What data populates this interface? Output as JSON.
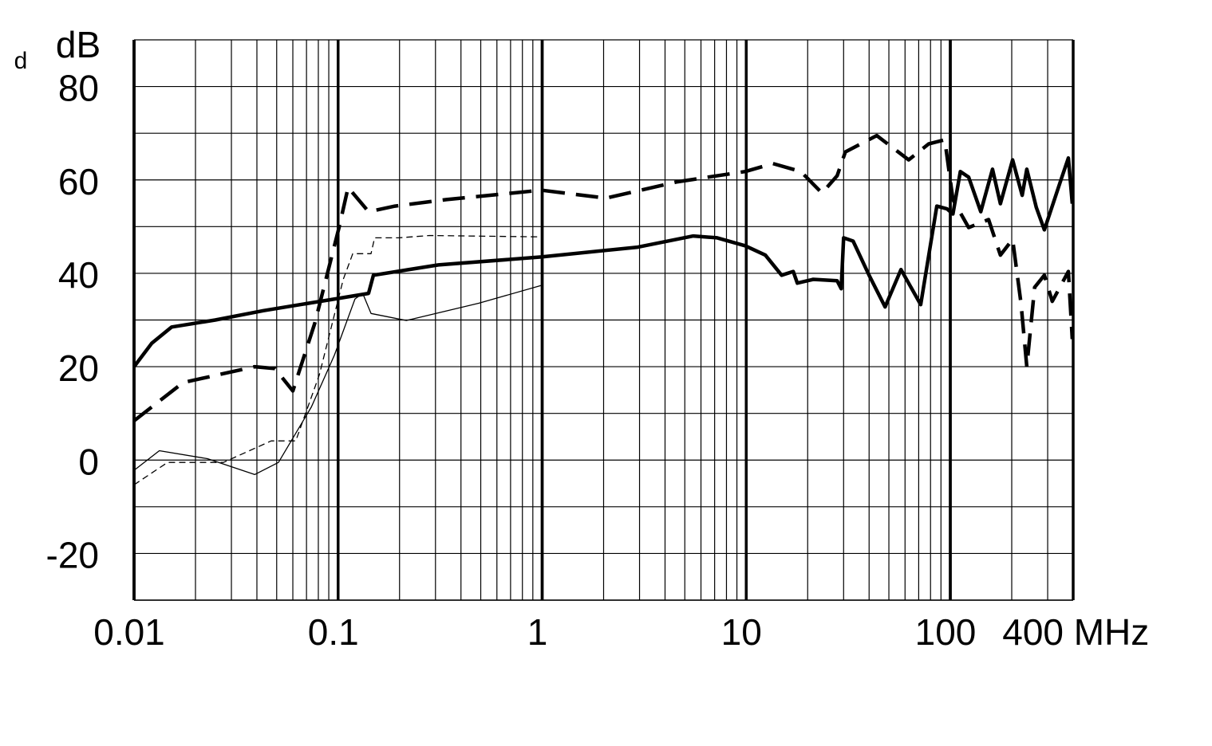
{
  "chart_data": {
    "type": "line",
    "corner_text": "d",
    "ylabel": "dB",
    "xlabel": "MHz",
    "xscale": "log",
    "xlim": [
      0.01,
      400
    ],
    "xticks": [
      0.01,
      0.1,
      1,
      10,
      100,
      400
    ],
    "ylim": [
      -30,
      90
    ],
    "yticks": [
      -20,
      0,
      20,
      40,
      60,
      80
    ],
    "y_minor_grid": [
      -30,
      -10,
      10,
      30,
      50,
      70,
      90
    ],
    "grid": true,
    "series": [
      {
        "color": "#000000",
        "style": "solid",
        "width": 4.5,
        "x": [
          0.01,
          0.0122,
          0.0153,
          0.025,
          0.043,
          0.0964,
          0.141,
          0.149,
          0.31,
          0.99,
          2.94,
          5.5,
          7.2,
          9.9,
          12.4,
          14.9,
          17,
          17.8,
          21.3,
          27.9,
          29.2,
          30,
          33.4,
          40,
          47.9,
          57.3,
          71.6,
          85.9,
          96.4,
          103,
          112,
          123,
          141,
          161,
          176,
          202,
          225,
          237,
          264,
          289,
          316,
          346,
          379,
          396
        ],
        "values": [
          20,
          25,
          28.5,
          30,
          32,
          34.5,
          35.7,
          39.6,
          41.8,
          43.5,
          45.6,
          48,
          47.6,
          45.9,
          43.9,
          39.6,
          40.4,
          37.9,
          38.7,
          38.4,
          36.7,
          47.6,
          46.9,
          39.6,
          32.8,
          40.8,
          33.3,
          54.4,
          53.8,
          52.7,
          61.8,
          60.6,
          53.2,
          62.3,
          54.9,
          64.3,
          56.7,
          62.3,
          54.1,
          49.3,
          54.4,
          59.6,
          64.7,
          54.9
        ]
      },
      {
        "color": "#000000",
        "style": "dashed",
        "width": 4.5,
        "x": [
          0.01,
          0.0174,
          0.039,
          0.049,
          0.06,
          0.077,
          0.101,
          0.112,
          0.141,
          0.19,
          0.34,
          0.99,
          2.05,
          4.6,
          9.9,
          13.5,
          18.5,
          23.5,
          27.9,
          30.6,
          43.6,
          62.5,
          78.3,
          94,
          103,
          123,
          154,
          176,
          202,
          222,
          237,
          259,
          289,
          316,
          379,
          396
        ],
        "values": [
          8.4,
          16.6,
          20,
          19.6,
          14.8,
          29.4,
          49.8,
          58.4,
          53.2,
          54.4,
          55.8,
          57.8,
          56.1,
          59.6,
          61.8,
          63.5,
          61.8,
          57.2,
          60.9,
          66,
          69.5,
          64.3,
          67.7,
          68.6,
          55.8,
          49.8,
          51.5,
          43.9,
          47.3,
          33.6,
          20,
          37,
          39.6,
          34,
          40.4,
          25.9
        ]
      },
      {
        "color": "#000000",
        "style": "solid",
        "width": 1.3,
        "x": [
          0.01,
          0.0133,
          0.0229,
          0.039,
          0.051,
          0.074,
          0.096,
          0.121,
          0.132,
          0.145,
          0.216,
          0.49,
          0.99
        ],
        "values": [
          -2.2,
          2,
          0.3,
          -3.1,
          -0.5,
          11.4,
          22.5,
          34.5,
          35.7,
          31.4,
          29.9,
          33.6,
          37.4
        ]
      },
      {
        "color": "#000000",
        "style": "dashed",
        "width": 1.3,
        "x": [
          0.01,
          0.0146,
          0.0274,
          0.047,
          0.062,
          0.081,
          0.106,
          0.118,
          0.145,
          0.151,
          0.198,
          0.28,
          0.99
        ],
        "values": [
          -5.3,
          -0.5,
          -0.5,
          4.1,
          4.1,
          18.3,
          38.7,
          44.2,
          44.2,
          47.6,
          47.6,
          48.1,
          47.8
        ]
      }
    ]
  }
}
